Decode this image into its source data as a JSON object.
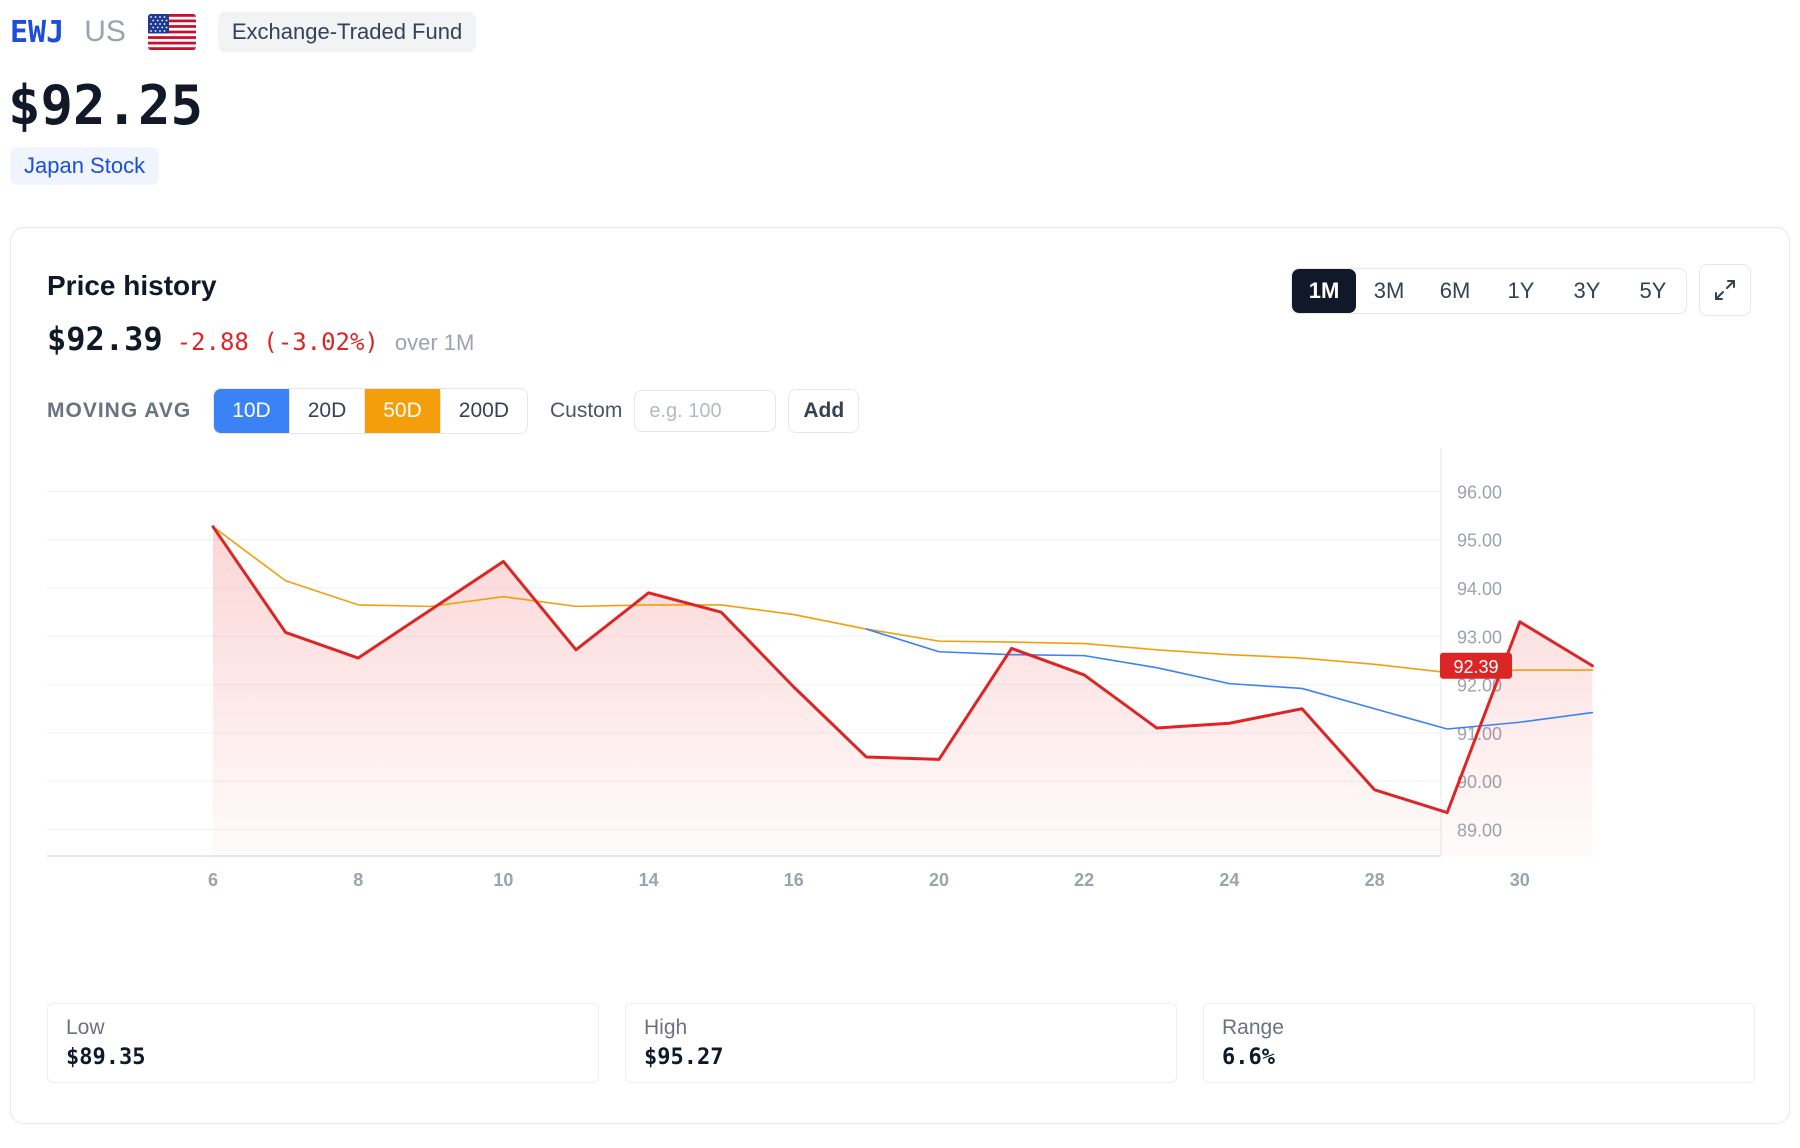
{
  "header": {
    "ticker": "EWJ",
    "country": "US",
    "flag_icon": "us-flag-icon",
    "fund_type": "Exchange-Traded Fund",
    "price": "$92.25",
    "category": "Japan Stock"
  },
  "card": {
    "title": "Price history",
    "current_price": "$92.39",
    "change": "-2.88 (-3.02%)",
    "period_text": "over 1M",
    "ranges": [
      "1M",
      "3M",
      "6M",
      "1Y",
      "3Y",
      "5Y"
    ],
    "active_range": "1M",
    "expand_icon": "expand-icon",
    "moving_avg": {
      "label": "MOVING AVG",
      "options": [
        "10D",
        "20D",
        "50D",
        "200D"
      ],
      "active": [
        "10D",
        "50D"
      ],
      "custom_label": "Custom",
      "custom_placeholder": "e.g. 100",
      "custom_value": "",
      "add_label": "Add"
    },
    "stats": [
      {
        "label": "Low",
        "value": "$89.35"
      },
      {
        "label": "High",
        "value": "$95.27"
      },
      {
        "label": "Range",
        "value": "6.6%"
      }
    ]
  },
  "colors": {
    "price_line": "#dc2626",
    "ma10": "#3b82f6",
    "ma50": "#f59e0b",
    "accent": "#1d4ed8"
  },
  "chart_data": {
    "type": "line",
    "x_ticks": [
      "6",
      "8",
      "10",
      "14",
      "16",
      "20",
      "22",
      "24",
      "28",
      "30"
    ],
    "y_ticks": [
      "96.00",
      "95.00",
      "94.00",
      "93.00",
      "92.00",
      "91.00",
      "90.00",
      "89.00"
    ],
    "ylim": [
      88.45,
      96.9
    ],
    "last_value_label": "92.39",
    "series": [
      {
        "values": [
          95.27,
          93.08,
          92.55,
          93.55,
          94.55,
          92.72,
          93.9,
          93.5,
          91.95,
          90.5,
          90.45,
          92.75,
          92.2,
          91.1,
          91.2,
          91.5,
          89.82,
          89.35,
          93.3,
          92.39
        ]
      },
      {
        "values": [
          null,
          null,
          null,
          null,
          null,
          null,
          null,
          null,
          null,
          93.15,
          92.68,
          92.62,
          92.6,
          92.35,
          92.02,
          91.92,
          91.5,
          91.08,
          91.22,
          91.42
        ]
      },
      {
        "values": [
          95.27,
          94.15,
          93.65,
          93.62,
          93.82,
          93.62,
          93.65,
          93.65,
          93.45,
          93.15,
          92.9,
          92.88,
          92.85,
          92.72,
          92.62,
          92.55,
          92.42,
          92.25,
          92.3,
          92.3
        ]
      }
    ]
  }
}
